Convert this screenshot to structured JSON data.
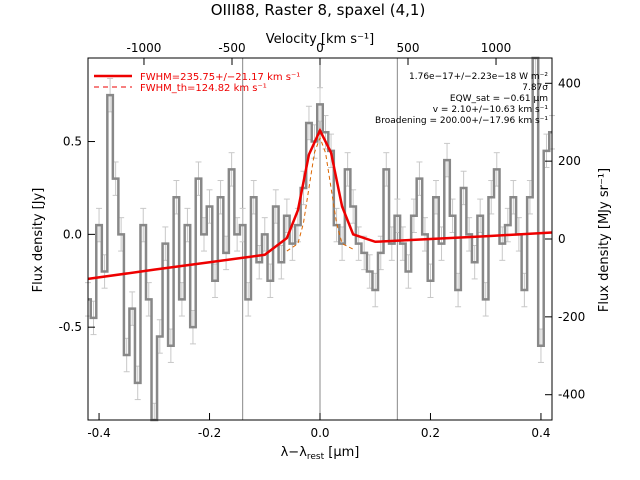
{
  "chart_data": {
    "type": "line",
    "title": "OIII88, Raster 8, spaxel (4,1)",
    "xlabel_main": "λ−λ",
    "xlabel_sub": "rest",
    "xlabel_unit": " [μm]",
    "ylabel_left": "Flux density [Jy]",
    "ylabel_right": "Flux density [MJy sr⁻¹]",
    "xlabel_top": "Velocity [km s⁻¹]",
    "xlim": [
      -0.42,
      0.42
    ],
    "ylim": [
      -1.0,
      0.95
    ],
    "ylim_right": [
      -465,
      465
    ],
    "velocity_lim": [
      -1318,
      1318
    ],
    "x_ticks": [
      "-0.4",
      "-0.2",
      "0.0",
      "0.2",
      "0.4"
    ],
    "y_ticks_left": [
      "-0.5",
      "0.0",
      "0.5"
    ],
    "y_ticks_right": [
      "-400",
      "-200",
      "0",
      "200",
      "400"
    ],
    "velocity_ticks": [
      "-1000",
      "-500",
      "0",
      "500",
      "1000"
    ],
    "vertical_lines_x": [
      -0.14,
      0.0,
      0.14
    ],
    "legend": {
      "position": "top-left",
      "entries": [
        {
          "label": "FWHM=235.75+/−21.17 km s⁻¹",
          "color": "#ee0000",
          "style": "solid"
        },
        {
          "label": "FWHM_th=124.82 km s⁻¹",
          "color": "#ee0000",
          "style": "dashed"
        }
      ]
    },
    "annotations": [
      "1.76e−17+/−2.23e−18 W m⁻²",
      "7.87σ",
      "EQW_sat = −0.61 μm",
      "v = 2.10+/−10.63 km s⁻¹",
      "Broadening = 200.00+/−17.96 km s⁻¹"
    ],
    "series": [
      {
        "style": "step",
        "color": "#888888",
        "x": [
          -0.42,
          -0.41,
          -0.4,
          -0.39,
          -0.38,
          -0.37,
          -0.36,
          -0.35,
          -0.34,
          -0.33,
          -0.32,
          -0.31,
          -0.3,
          -0.29,
          -0.28,
          -0.27,
          -0.26,
          -0.25,
          -0.24,
          -0.23,
          -0.22,
          -0.21,
          -0.2,
          -0.19,
          -0.18,
          -0.17,
          -0.16,
          -0.15,
          -0.14,
          -0.13,
          -0.12,
          -0.11,
          -0.1,
          -0.09,
          -0.08,
          -0.07,
          -0.06,
          -0.05,
          -0.04,
          -0.03,
          -0.02,
          -0.01,
          0.0,
          0.01,
          0.02,
          0.03,
          0.04,
          0.05,
          0.06,
          0.07,
          0.08,
          0.09,
          0.1,
          0.11,
          0.12,
          0.13,
          0.14,
          0.15,
          0.16,
          0.17,
          0.18,
          0.19,
          0.2,
          0.21,
          0.22,
          0.23,
          0.24,
          0.25,
          0.26,
          0.27,
          0.28,
          0.29,
          0.3,
          0.31,
          0.32,
          0.33,
          0.34,
          0.35,
          0.36,
          0.37,
          0.38,
          0.39,
          0.4,
          0.41,
          0.42
        ],
        "y": [
          -0.35,
          -0.45,
          0.05,
          -0.2,
          0.75,
          0.3,
          0.0,
          -0.65,
          -0.4,
          -0.8,
          0.05,
          -0.35,
          -1.0,
          -0.55,
          -0.05,
          -0.6,
          0.2,
          -0.35,
          0.05,
          -0.5,
          0.3,
          0.0,
          0.15,
          -0.25,
          0.2,
          -0.1,
          0.35,
          0.0,
          0.05,
          -0.35,
          0.2,
          -0.15,
          0.0,
          -0.25,
          0.15,
          -0.15,
          0.1,
          -0.05,
          0.05,
          0.25,
          0.6,
          0.5,
          0.7,
          0.55,
          0.45,
          0.05,
          -0.05,
          0.35,
          0.15,
          -0.05,
          -0.1,
          -0.2,
          -0.3,
          -0.1,
          0.35,
          -0.05,
          0.1,
          -0.05,
          -0.2,
          0.1,
          0.3,
          0.0,
          -0.25,
          0.2,
          -0.05,
          0.4,
          0.1,
          -0.3,
          0.25,
          0.0,
          -0.15,
          0.1,
          -0.35,
          0.2,
          0.35,
          -0.05,
          0.05,
          0.2,
          0.0,
          -0.3,
          0.2,
          0.95,
          -0.6,
          0.45,
          0.55
        ],
        "error": 0.09
      },
      {
        "style": "solid",
        "color": "#ee0000",
        "model": "gaussian+linear",
        "x": [
          -0.42,
          -0.3,
          -0.2,
          -0.1,
          -0.06,
          -0.04,
          -0.02,
          0.0,
          0.02,
          0.04,
          0.06,
          0.1,
          0.2,
          0.3,
          0.42
        ],
        "y": [
          -0.24,
          -0.19,
          -0.15,
          -0.11,
          -0.02,
          0.13,
          0.43,
          0.56,
          0.44,
          0.15,
          0.0,
          -0.04,
          -0.025,
          -0.01,
          0.01
        ]
      },
      {
        "style": "dashed",
        "color": "#dd6600",
        "x": [
          -0.06,
          -0.04,
          -0.03,
          -0.02,
          -0.01,
          0.0,
          0.01,
          0.02,
          0.03,
          0.04,
          0.06
        ],
        "y": [
          -0.09,
          -0.05,
          0.06,
          0.25,
          0.44,
          0.52,
          0.44,
          0.25,
          0.06,
          -0.05,
          -0.08
        ]
      }
    ]
  }
}
